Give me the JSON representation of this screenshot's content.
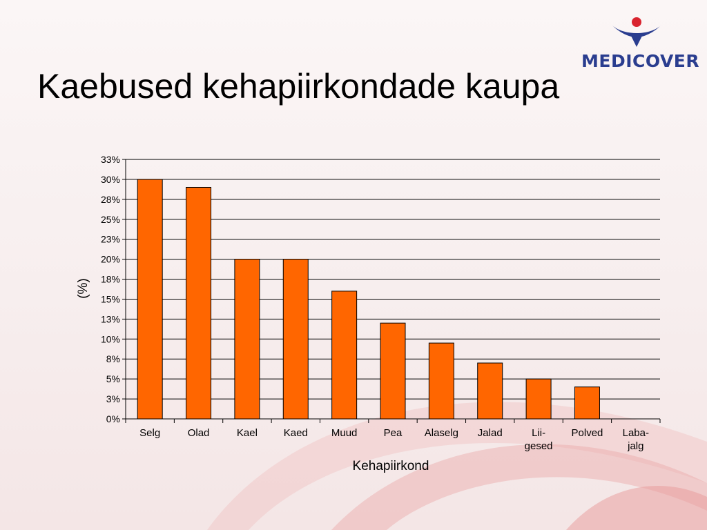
{
  "slide": {
    "title": "Kaebused kehapiirkondade kaupa",
    "logo_text": "MEDICOVER"
  },
  "colors": {
    "bar_fill": "#ff6600",
    "bar_stroke": "#000000",
    "grid": "#000000",
    "logo_blue": "#2a3d8f",
    "logo_red": "#d9232e",
    "swoosh": "#e8a7a7"
  },
  "icons": {
    "logo_mark": "medicover-person-icon"
  },
  "chart_data": {
    "type": "bar",
    "title": "",
    "xlabel": "Kehapiirkond",
    "ylabel": "(%)",
    "categories": [
      "Selg",
      "Olad",
      "Kael",
      "Kaed",
      "Muud",
      "Pea",
      "Alaselg",
      "Jalad",
      "Lii-\ngesed",
      "Polved",
      "Laba-\njalg"
    ],
    "values": [
      30.0,
      29.0,
      20.0,
      20.0,
      16.0,
      12.0,
      9.5,
      7.0,
      5.0,
      4.0,
      0.0
    ],
    "yticks": [
      "0%",
      "3%",
      "5%",
      "8%",
      "10%",
      "13%",
      "15%",
      "18%",
      "20%",
      "23%",
      "25%",
      "28%",
      "30%",
      "33%"
    ],
    "ylim": [
      0,
      32.5
    ],
    "grid": true,
    "legend": "none"
  }
}
